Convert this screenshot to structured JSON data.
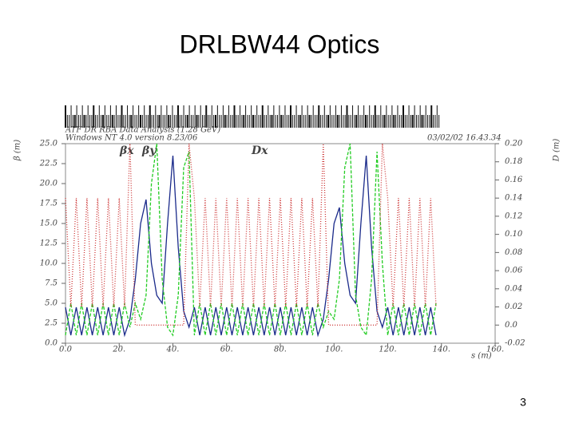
{
  "title": "DRLBW44 Optics",
  "page_number": "3",
  "chart_data": {
    "type": "line",
    "header_left": [
      "ATF DR RBA Data Analysis (1.28 GeV)",
      "Windows NT 4.0 version 8.23/06"
    ],
    "header_right": "03/02/02  16.43.34",
    "y_label": "β (m)",
    "y2_label": "D (m)",
    "x_label": "s (m)",
    "x": [
      0,
      2,
      4,
      6,
      8,
      10,
      12,
      14,
      16,
      18,
      20,
      22,
      24,
      26,
      28,
      30,
      32,
      34,
      36,
      38,
      40,
      42,
      44,
      46,
      48,
      50,
      52,
      54,
      56,
      58,
      60,
      62,
      64,
      66,
      68,
      70,
      72,
      74,
      76,
      78,
      80,
      82,
      84,
      86,
      88,
      90,
      92,
      94,
      96,
      98,
      100,
      102,
      104,
      106,
      108,
      110,
      112,
      114,
      116,
      118,
      120,
      122,
      124,
      126,
      128,
      130,
      132,
      134,
      136,
      138
    ],
    "series": [
      {
        "name": "βx",
        "color": "#1a2a8a",
        "style": "solid",
        "values": [
          4.5,
          1.0,
          4.5,
          1.0,
          4.5,
          1.0,
          4.5,
          1.0,
          4.5,
          1.0,
          4.5,
          1.0,
          3,
          8,
          15,
          18,
          10,
          6,
          5,
          15,
          23.5,
          12,
          4,
          2,
          4.5,
          1.0,
          4.5,
          1.0,
          4.5,
          1.0,
          4.5,
          1.0,
          4.5,
          1.0,
          4.5,
          1.0,
          4.5,
          1.0,
          4.5,
          1.0,
          4.5,
          1.0,
          4.5,
          1.0,
          4.5,
          1.0,
          4.5,
          1.0,
          3,
          8,
          15,
          17,
          10,
          6,
          5,
          15,
          23.5,
          12,
          4,
          2,
          4.5,
          1.0,
          4.5,
          1.0,
          4.5,
          1.0,
          4.5,
          1.0,
          4.5,
          1.0
        ]
      },
      {
        "name": "βy",
        "color": "#22cc22",
        "style": "dashed",
        "values": [
          1.0,
          5.0,
          1.0,
          5.0,
          1.0,
          5.0,
          1.0,
          5.0,
          1.0,
          5.0,
          1.0,
          5.0,
          2,
          5,
          3,
          6,
          20,
          25,
          8,
          2,
          1,
          6,
          22,
          24,
          1.0,
          5.0,
          1.0,
          5.0,
          1.0,
          5.0,
          1.0,
          5.0,
          1.0,
          5.0,
          1.0,
          5.0,
          1.0,
          5.0,
          1.0,
          5.0,
          1.0,
          5.0,
          1.0,
          5.0,
          1.0,
          5.0,
          1.0,
          5.0,
          2,
          4,
          3,
          8,
          22,
          25,
          6,
          2,
          1,
          8,
          24,
          10,
          1.0,
          5.0,
          1.0,
          5.0,
          1.0,
          5.0,
          1.0,
          5.0,
          1.0,
          5.0
        ]
      },
      {
        "name": "Dx",
        "color": "#cc3333",
        "style": "dotted",
        "axis": "y2",
        "values": [
          0.14,
          0.02,
          0.14,
          0.02,
          0.14,
          0.02,
          0.14,
          0.02,
          0.14,
          0.02,
          0.14,
          0.02,
          0.2,
          0.0,
          0.0,
          0.0,
          0.0,
          0.0,
          0.0,
          0.0,
          0.0,
          0.0,
          0.0,
          0.2,
          0.14,
          0.02,
          0.14,
          0.02,
          0.14,
          0.02,
          0.14,
          0.02,
          0.14,
          0.02,
          0.14,
          0.02,
          0.14,
          0.02,
          0.14,
          0.02,
          0.14,
          0.02,
          0.14,
          0.02,
          0.14,
          0.02,
          0.14,
          0.02,
          0.2,
          0.0,
          0.0,
          0.0,
          0.0,
          0.0,
          0.0,
          0.0,
          0.0,
          0.0,
          0.0,
          0.2,
          0.14,
          0.02,
          0.14,
          0.02,
          0.14,
          0.02,
          0.14,
          0.02,
          0.14,
          0.02
        ]
      }
    ],
    "xlim": [
      0,
      160
    ],
    "xticks": [
      {
        "value": 0,
        "label": "0.0"
      },
      {
        "value": 20,
        "label": "20."
      },
      {
        "value": 40,
        "label": "40."
      },
      {
        "value": 60,
        "label": "60."
      },
      {
        "value": 80,
        "label": "80."
      },
      {
        "value": 100,
        "label": "100."
      },
      {
        "value": 120,
        "label": "120."
      },
      {
        "value": 140,
        "label": "140."
      },
      {
        "value": 160,
        "label": "160."
      }
    ],
    "ylim": [
      0,
      25
    ],
    "yticks": [
      {
        "value": 0,
        "label": "0.0"
      },
      2.5,
      {
        "value": 5,
        "label": "5.0"
      },
      7.5,
      {
        "value": 10,
        "label": "10.0"
      },
      12.5,
      {
        "value": 15,
        "label": "15.0"
      },
      17.5,
      {
        "value": 20,
        "label": "20.0"
      },
      22.5,
      {
        "value": 25,
        "label": "25.0"
      }
    ],
    "y2lim": [
      -0.02,
      0.2
    ],
    "y2ticks": [
      -0.02,
      {
        "value": 0,
        "label": "0.0"
      },
      0.02,
      0.04,
      0.06,
      0.08,
      {
        "value": 0.1,
        "label": "0.10"
      },
      0.12,
      0.14,
      0.16,
      0.18,
      {
        "value": 0.2,
        "label": "0.20"
      }
    ]
  }
}
